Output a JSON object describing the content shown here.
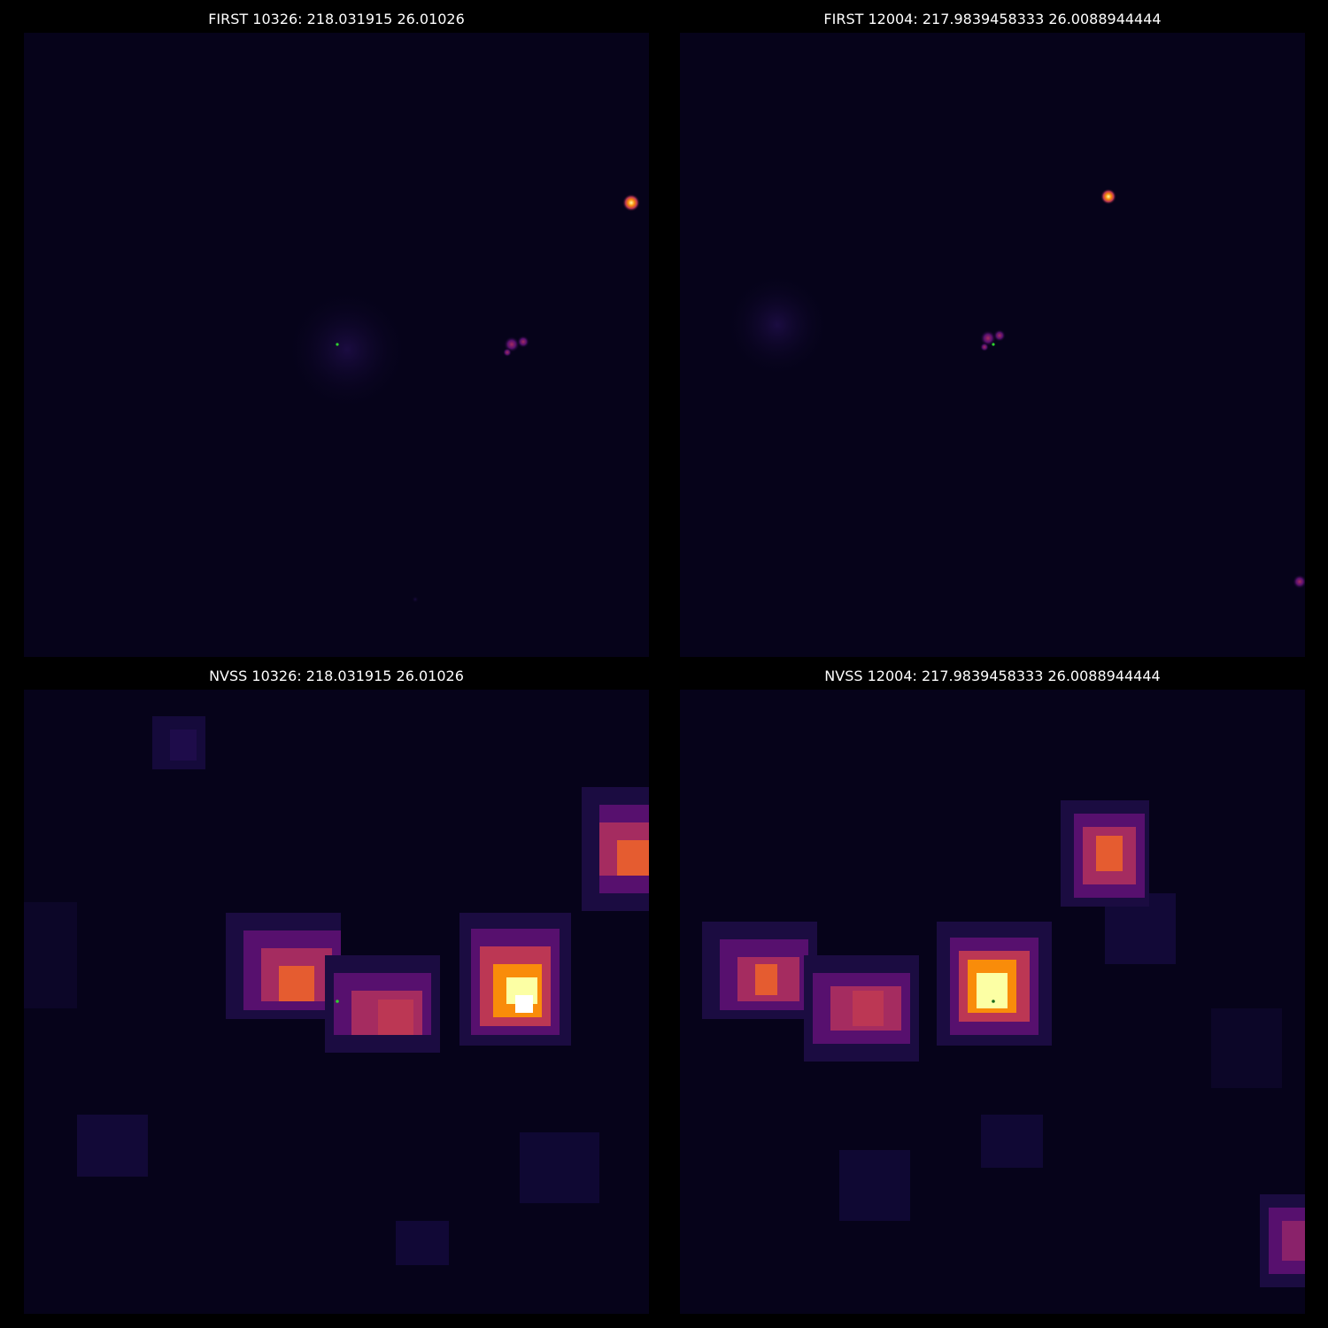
{
  "panels": {
    "first_a": {
      "title": "FIRST 10326: 218.031915 26.01026"
    },
    "first_b": {
      "title": "FIRST 12004: 217.9839458333 26.0088944444"
    },
    "nvss_a": {
      "title": "NVSS 10326: 218.031915 26.01026"
    },
    "nvss_b": {
      "title": "NVSS 12004: 217.9839458333 26.0088944444"
    }
  },
  "colors": {
    "background": "#000000",
    "image_floor": "#06031a",
    "colormap": "inferno",
    "marker": "#2fd12f"
  }
}
